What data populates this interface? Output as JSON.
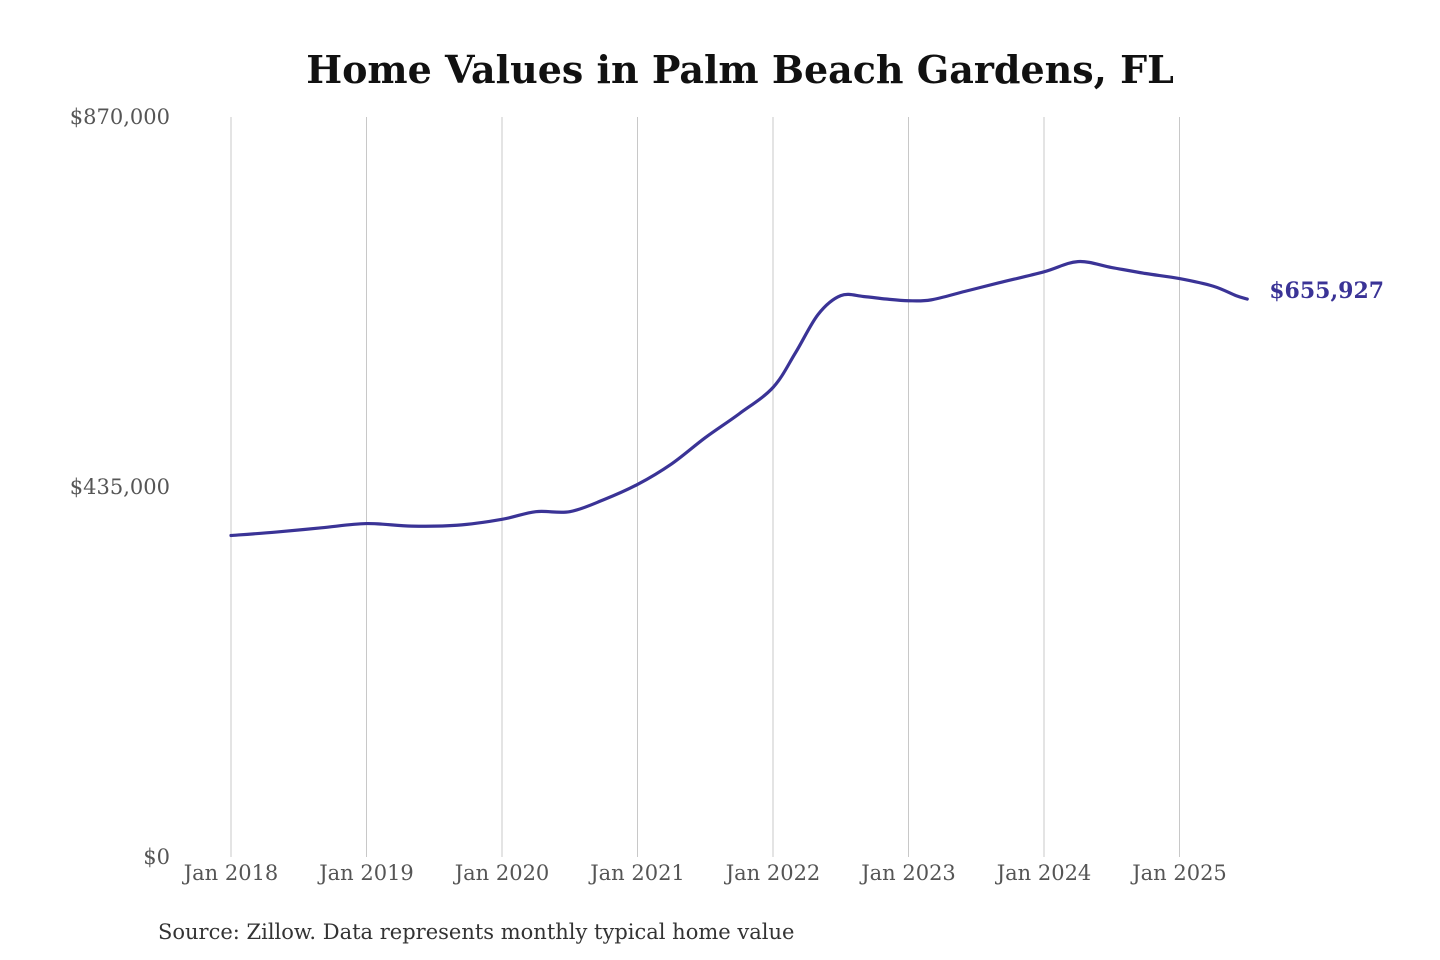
{
  "chart_data": {
    "type": "line",
    "title": "Home Values in Palm Beach Gardens, FL",
    "source": "Source: Zillow. Data represents monthly typical home value",
    "ylim": [
      0,
      870000
    ],
    "y_ticks": [
      {
        "value": 0,
        "label": "$0"
      },
      {
        "value": 435000,
        "label": "$435,000"
      },
      {
        "value": 870000,
        "label": "$870,000"
      }
    ],
    "x_ticks": [
      {
        "value": "2018-01",
        "label": "Jan 2018"
      },
      {
        "value": "2019-01",
        "label": "Jan 2019"
      },
      {
        "value": "2020-01",
        "label": "Jan 2020"
      },
      {
        "value": "2021-01",
        "label": "Jan 2021"
      },
      {
        "value": "2022-01",
        "label": "Jan 2022"
      },
      {
        "value": "2023-01",
        "label": "Jan 2023"
      },
      {
        "value": "2024-01",
        "label": "Jan 2024"
      },
      {
        "value": "2025-01",
        "label": "Jan 2025"
      }
    ],
    "grid": "vertical",
    "legend": "none",
    "series": [
      {
        "color": "#3a3396",
        "end_label": "$655,927",
        "points": [
          {
            "x": "2018-01",
            "y": 378000
          },
          {
            "x": "2018-05",
            "y": 382000
          },
          {
            "x": "2018-09",
            "y": 387000
          },
          {
            "x": "2019-01",
            "y": 392000
          },
          {
            "x": "2019-05",
            "y": 389000
          },
          {
            "x": "2019-09",
            "y": 390000
          },
          {
            "x": "2020-01",
            "y": 397000
          },
          {
            "x": "2020-04",
            "y": 406000
          },
          {
            "x": "2020-07",
            "y": 406000
          },
          {
            "x": "2020-10",
            "y": 420000
          },
          {
            "x": "2021-01",
            "y": 438000
          },
          {
            "x": "2021-04",
            "y": 462000
          },
          {
            "x": "2021-07",
            "y": 493000
          },
          {
            "x": "2021-10",
            "y": 521000
          },
          {
            "x": "2022-01",
            "y": 552000
          },
          {
            "x": "2022-03",
            "y": 593000
          },
          {
            "x": "2022-05",
            "y": 638000
          },
          {
            "x": "2022-07",
            "y": 660000
          },
          {
            "x": "2022-09",
            "y": 659000
          },
          {
            "x": "2022-11",
            "y": 656000
          },
          {
            "x": "2023-01",
            "y": 654000
          },
          {
            "x": "2023-03",
            "y": 655000
          },
          {
            "x": "2023-06",
            "y": 665000
          },
          {
            "x": "2023-09",
            "y": 675000
          },
          {
            "x": "2024-01",
            "y": 688000
          },
          {
            "x": "2024-04",
            "y": 700000
          },
          {
            "x": "2024-07",
            "y": 693000
          },
          {
            "x": "2024-10",
            "y": 686000
          },
          {
            "x": "2025-01",
            "y": 680000
          },
          {
            "x": "2025-04",
            "y": 671000
          },
          {
            "x": "2025-06",
            "y": 660000
          },
          {
            "x": "2025-07",
            "y": 655927
          }
        ]
      }
    ]
  }
}
